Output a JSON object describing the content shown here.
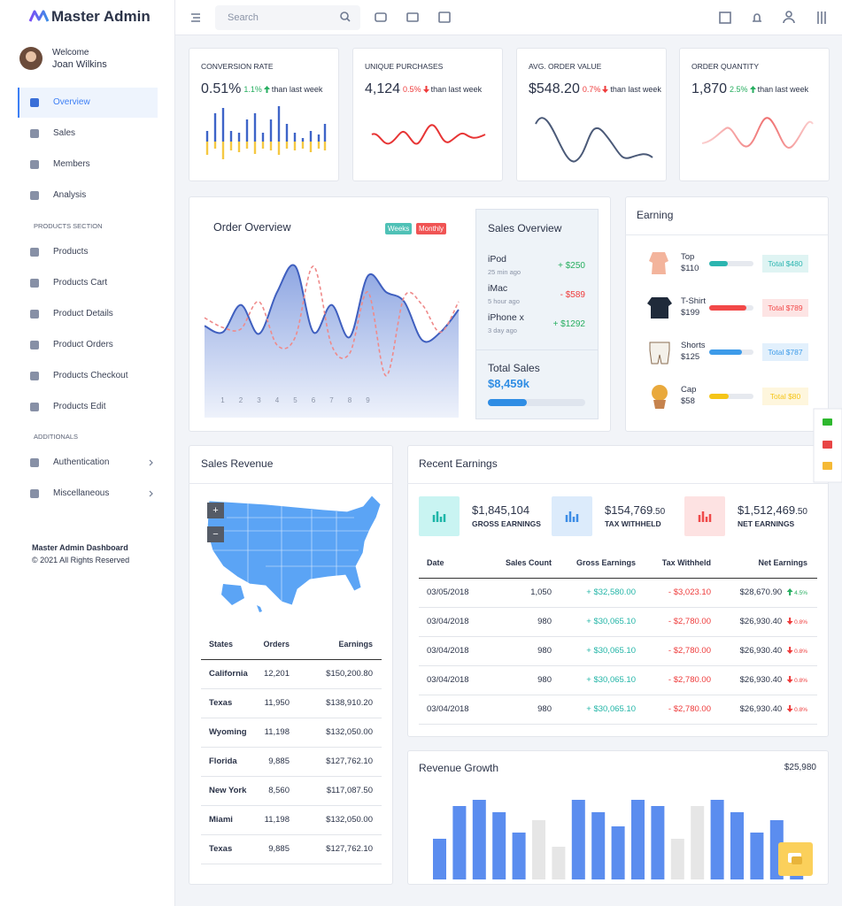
{
  "brand": "Master Admin",
  "search_placeholder": "Search",
  "user": {
    "greeting": "Welcome",
    "name": "Joan Wilkins"
  },
  "menu": [
    {
      "label": "Overview",
      "active": true
    },
    {
      "label": "Sales"
    },
    {
      "label": "Members"
    },
    {
      "label": "Analysis"
    }
  ],
  "products_section": {
    "title": "PRODUCTS SECTION",
    "items": [
      "Products",
      "Products Cart",
      "Product Details",
      "Product Orders",
      "Products Checkout",
      "Products Edit"
    ]
  },
  "additionals": {
    "title": "ADDITIONALS",
    "items": [
      "Authentication",
      "Miscellaneous"
    ]
  },
  "footer": {
    "title": "Master Admin Dashboard",
    "copyright": "© 2021 All Rights Reserved"
  },
  "stats": [
    {
      "title": "CONVERSION RATE",
      "value": "0.51%",
      "change": "1.1%",
      "direction": "up",
      "note": "than last week"
    },
    {
      "title": "UNIQUE PURCHASES",
      "value": "4,124",
      "change": "0.5%",
      "direction": "down",
      "note": "than last week"
    },
    {
      "title": "AVG. ORDER VALUE",
      "value": "$548.20",
      "change": "0.7%",
      "direction": "down",
      "note": "than last week"
    },
    {
      "title": "ORDER QUANTITY",
      "value": "1,870",
      "change": "2.5%",
      "direction": "up",
      "note": "than last week"
    }
  ],
  "order_overview": {
    "title": "Order Overview",
    "tabs": [
      {
        "label": "Weeks",
        "color": "#4fc1b6"
      },
      {
        "label": "Monthly",
        "color": "#f05454"
      }
    ],
    "chart": {
      "type": "line",
      "categories": [
        null,
        "1",
        "2",
        "3",
        "4",
        "5",
        "6",
        "7",
        "8",
        "9",
        null,
        null,
        null,
        null,
        null
      ],
      "ylim": [
        0,
        100
      ],
      "series": [
        {
          "color": "#3f5fbf",
          "area": true,
          "values": [
            57,
            53,
            70,
            52,
            78,
            94,
            53,
            70,
            50,
            88,
            78,
            72,
            48,
            53,
            67
          ]
        },
        {
          "color": "#ef8a8a",
          "dashed": true,
          "values": [
            62,
            56,
            55,
            72,
            45,
            50,
            94,
            45,
            40,
            78,
            26,
            75,
            70,
            53,
            72
          ]
        }
      ]
    }
  },
  "sales_overview": {
    "title": "Sales Overview",
    "items": [
      {
        "name": "iPod",
        "time": "25 min ago",
        "amount": "+ $250",
        "direction": "up"
      },
      {
        "name": "iMac",
        "time": "5 hour ago",
        "amount": "- $589",
        "direction": "down"
      },
      {
        "name": "iPhone x",
        "time": "3 day ago",
        "amount": "+ $1292",
        "direction": "up"
      }
    ],
    "total_label": "Total Sales",
    "total": "$8,459k",
    "progress": 40
  },
  "earning": {
    "title": "Earning",
    "items": [
      {
        "name": "Top",
        "price": "$110",
        "total": "Total $480",
        "color": "#2bb5b0",
        "progress": 42
      },
      {
        "name": "T-Shirt",
        "price": "$199",
        "total": "Total $789",
        "color": "#f24848",
        "progress": 84
      },
      {
        "name": "Shorts",
        "price": "$125",
        "total": "Total $787",
        "color": "#3d9be9",
        "progress": 74
      },
      {
        "name": "Cap",
        "price": "$58",
        "total": "Total $80",
        "color": "#f5c518",
        "progress": 44
      }
    ]
  },
  "sales_revenue": {
    "title": "Sales Revenue",
    "zoom": [
      "+",
      "−"
    ],
    "table": {
      "columns": [
        "States",
        "Orders",
        "Earnings"
      ],
      "rows": [
        [
          "California",
          "12,201",
          "$150,200.80"
        ],
        [
          "Texas",
          "11,950",
          "$138,910.20"
        ],
        [
          "Wyoming",
          "11,198",
          "$132,050.00"
        ],
        [
          "Florida",
          "9,885",
          "$127,762.10"
        ],
        [
          "New York",
          "8,560",
          "$117,087.50"
        ],
        [
          "Miami",
          "11,198",
          "$132,050.00"
        ],
        [
          "Texas",
          "9,885",
          "$127,762.10"
        ]
      ]
    }
  },
  "recent_earnings": {
    "title": "Recent Earnings",
    "summary": [
      {
        "amount": "$1,845,104",
        "cents": "",
        "label": "GROSS EARNINGS",
        "color": "#1eb6a8",
        "bg": "#c9f4f2"
      },
      {
        "amount": "$154,769",
        "cents": ".50",
        "label": "TAX WITHHELD",
        "color": "#3d8de6",
        "bg": "#dcebfb"
      },
      {
        "amount": "$1,512,469",
        "cents": ".50",
        "label": "NET EARNINGS",
        "color": "#ef4a4a",
        "bg": "#fde2e2"
      }
    ],
    "table": {
      "columns": [
        "Date",
        "Sales Count",
        "Gross Earnings",
        "Tax Withheld",
        "Net Earnings"
      ],
      "rows": [
        {
          "date": "03/05/2018",
          "sales_count": "1,050",
          "gross": "+ $32,580.00",
          "tax": "- $3,023.10",
          "net": "$28,670.90",
          "change": "4.5%",
          "direction": "up"
        },
        {
          "date": "03/04/2018",
          "sales_count": "980",
          "gross": "+ $30,065.10",
          "tax": "- $2,780.00",
          "net": "$26,930.40",
          "change": "0.8%",
          "direction": "down"
        },
        {
          "date": "03/04/2018",
          "sales_count": "980",
          "gross": "+ $30,065.10",
          "tax": "- $2,780.00",
          "net": "$26,930.40",
          "change": "0.8%",
          "direction": "down"
        },
        {
          "date": "03/04/2018",
          "sales_count": "980",
          "gross": "+ $30,065.10",
          "tax": "- $2,780.00",
          "net": "$26,930.40",
          "change": "0.8%",
          "direction": "down"
        },
        {
          "date": "03/04/2018",
          "sales_count": "980",
          "gross": "+ $30,065.10",
          "tax": "- $2,780.00",
          "net": "$26,930.40",
          "change": "0.8%",
          "direction": "down"
        }
      ]
    }
  },
  "revenue_growth": {
    "title": "Revenue Growth",
    "total": "$25,980",
    "chart": {
      "type": "bar",
      "ylim": [
        0,
        100
      ],
      "values": [
        46,
        83,
        90,
        76,
        53,
        67,
        37,
        90,
        76,
        60,
        90,
        83,
        46,
        83,
        90,
        76,
        53,
        67,
        37
      ],
      "colors": [
        "#5b8def",
        "#5b8def",
        "#5b8def",
        "#5b8def",
        "#5b8def",
        "#e6e6e6",
        "#e6e6e6",
        "#5b8def",
        "#5b8def",
        "#5b8def",
        "#5b8def",
        "#5b8def",
        "#e6e6e6",
        "#e6e6e6",
        "#5b8def",
        "#5b8def",
        "#5b8def",
        "#5b8def",
        "#5b8def"
      ]
    }
  }
}
